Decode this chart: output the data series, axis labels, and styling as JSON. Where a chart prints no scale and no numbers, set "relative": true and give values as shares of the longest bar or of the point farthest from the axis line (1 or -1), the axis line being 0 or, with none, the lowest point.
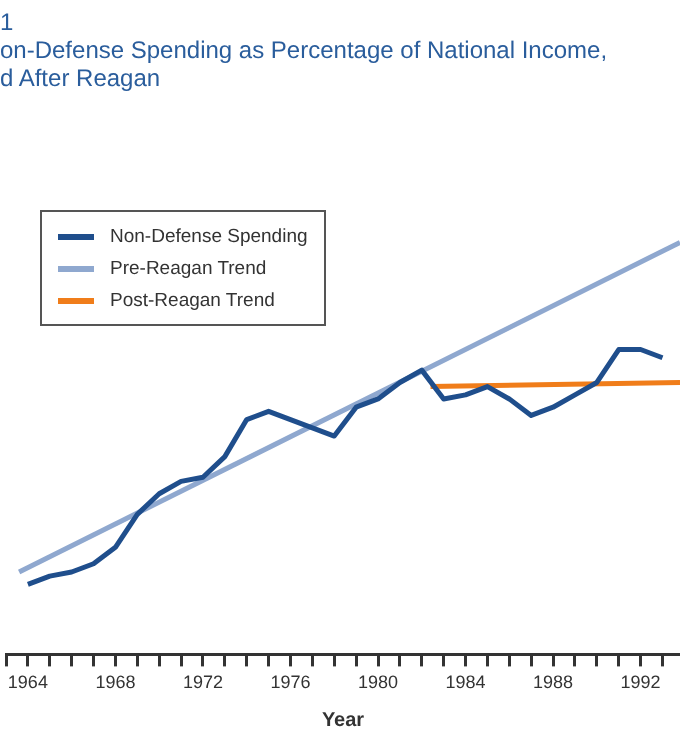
{
  "chart_data": {
    "type": "line",
    "title": "1\non-Defense Spending as Percentage of National Income,\nd After Reagan",
    "xlabel": "Year",
    "relative": true,
    "xlim": [
      1963,
      1993.8
    ],
    "xticks": [
      {
        "value": 1963,
        "label": null
      },
      1964,
      {
        "value": 1965,
        "label": null
      },
      {
        "value": 1966,
        "label": null
      },
      {
        "value": 1967,
        "label": null
      },
      1968,
      {
        "value": 1969,
        "label": null
      },
      {
        "value": 1970,
        "label": null
      },
      {
        "value": 1971,
        "label": null
      },
      1972,
      {
        "value": 1973,
        "label": null
      },
      {
        "value": 1974,
        "label": null
      },
      {
        "value": 1975,
        "label": null
      },
      1976,
      {
        "value": 1977,
        "label": null
      },
      {
        "value": 1978,
        "label": null
      },
      {
        "value": 1979,
        "label": null
      },
      1980,
      {
        "value": 1981,
        "label": null
      },
      {
        "value": 1982,
        "label": null
      },
      {
        "value": 1983,
        "label": null
      },
      1984,
      {
        "value": 1985,
        "label": null
      },
      {
        "value": 1986,
        "label": null
      },
      {
        "value": 1987,
        "label": null
      },
      1988,
      {
        "value": 1989,
        "label": null
      },
      {
        "value": 1990,
        "label": null
      },
      {
        "value": 1991,
        "label": null
      },
      1992,
      {
        "value": 1993,
        "label": null
      }
    ],
    "x": [
      1964,
      1965,
      1966,
      1967,
      1968,
      1969,
      1970,
      1971,
      1972,
      1973,
      1974,
      1975,
      1976,
      1977,
      1978,
      1979,
      1980,
      1981,
      1982,
      1983,
      1984,
      1985,
      1986,
      1987,
      1988,
      1989,
      1990,
      1991,
      1992,
      1993
    ],
    "series": [
      {
        "name": "Non-Defense Spending",
        "color": "#1f4e8c",
        "values": [
          0.17,
          0.19,
          0.2,
          0.22,
          0.26,
          0.34,
          0.39,
          0.42,
          0.43,
          0.48,
          0.57,
          0.59,
          0.57,
          0.55,
          0.53,
          0.6,
          0.62,
          0.66,
          0.69,
          0.62,
          0.63,
          0.65,
          0.62,
          0.58,
          0.6,
          0.63,
          0.66,
          0.74,
          0.74,
          0.72
        ]
      },
      {
        "name": "Pre-Reagan Trend",
        "color": "#8fa8cf",
        "x": [
          1963.6,
          1993.8
        ],
        "values": [
          0.2,
          1
        ]
      },
      {
        "name": "Post-Reagan Trend",
        "color": "#f07d1a",
        "x": [
          1982.4,
          1993.8
        ],
        "values": [
          0.65,
          0.66
        ]
      }
    ],
    "legend": "top left",
    "grid": false,
    "marker": "none",
    "line_style": "solid"
  }
}
